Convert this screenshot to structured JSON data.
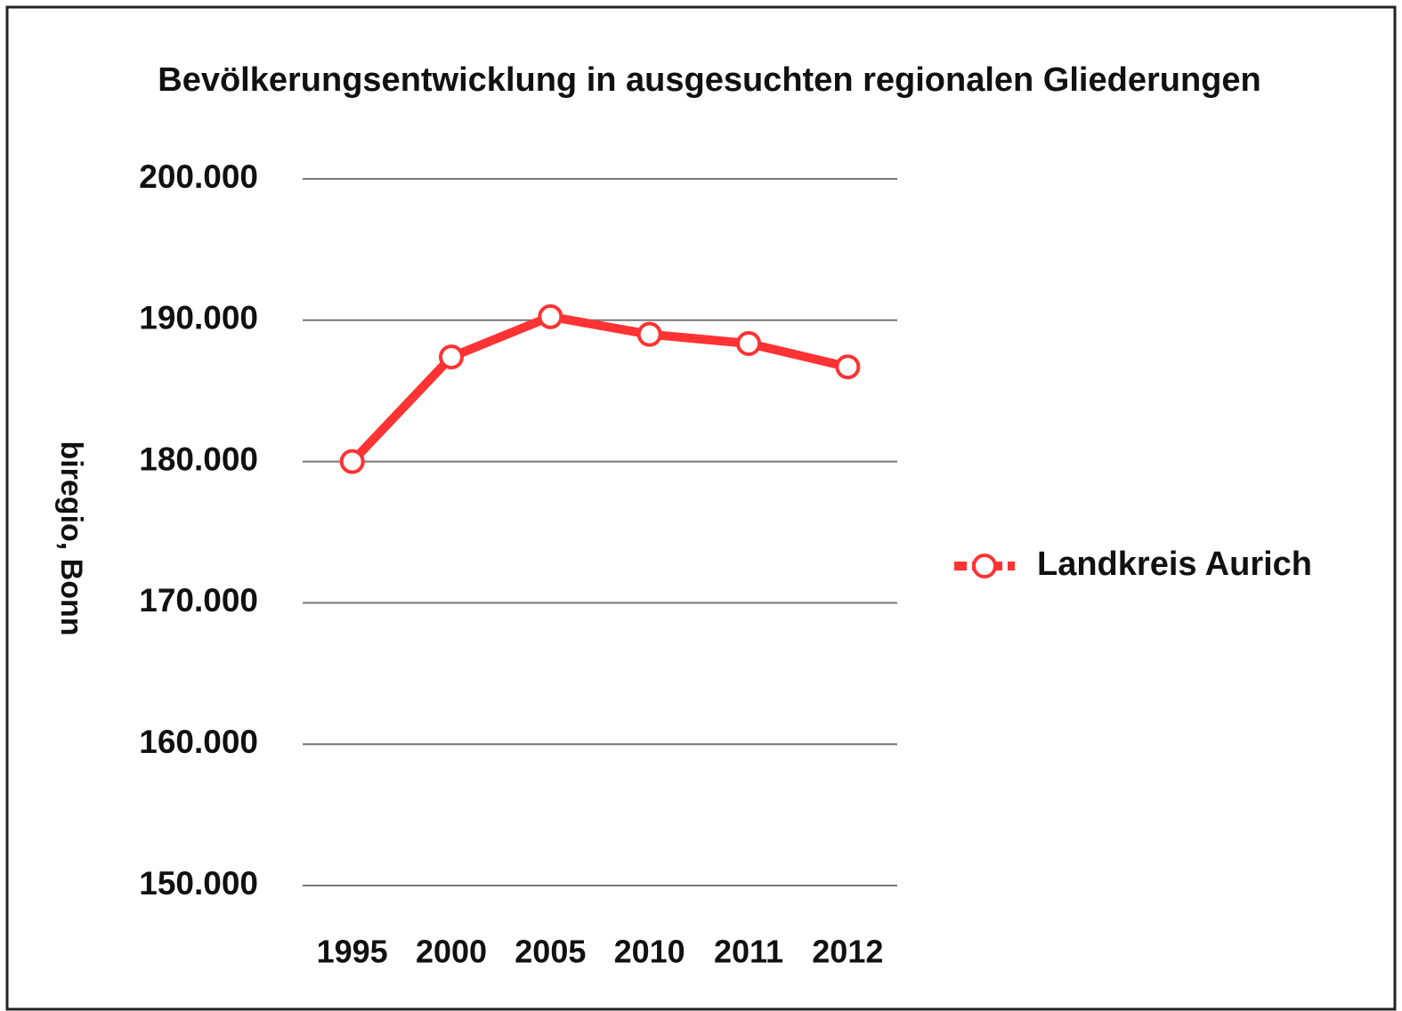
{
  "chart_data": {
    "type": "line",
    "title": "Bevölkerungsentwicklung in ausgesuchten regionalen Gliederungen",
    "y_label": "biregio, Bonn",
    "categories": [
      "1995",
      "2000",
      "2005",
      "2010",
      "2011",
      "2012"
    ],
    "series": [
      {
        "name": "Landkreis Aurich",
        "color": "#ff3333",
        "values": [
          180000,
          187400,
          190250,
          189000,
          188350,
          186700
        ]
      }
    ],
    "ylim": [
      150000,
      200000
    ],
    "yticks": [
      {
        "value": 150000,
        "label": "150.000"
      },
      {
        "value": 160000,
        "label": "160.000"
      },
      {
        "value": 170000,
        "label": "170.000"
      },
      {
        "value": 180000,
        "label": "180.000"
      },
      {
        "value": 190000,
        "label": "190.000"
      },
      {
        "value": 200000,
        "label": "200.000"
      }
    ],
    "grid": true,
    "legend": "right"
  }
}
